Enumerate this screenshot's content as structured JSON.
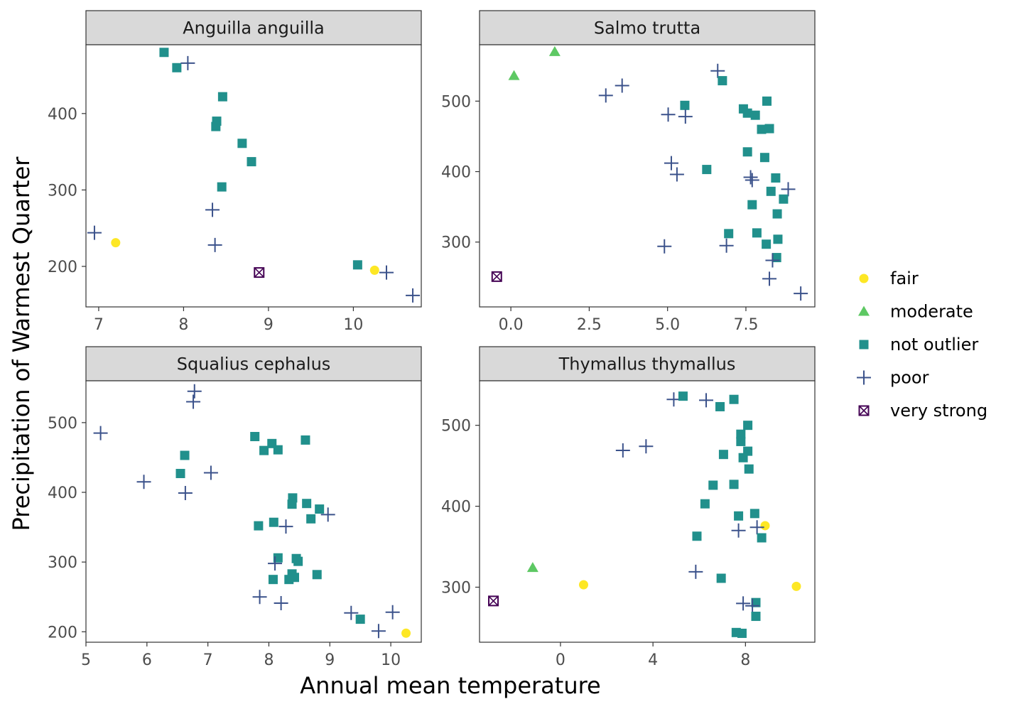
{
  "xlabel": "Annual mean temperature",
  "ylabel": "Precipitation of Warmest Quarter",
  "colors": {
    "fair": "#FDE725",
    "moderate": "#5DC863",
    "not outlier": "#21908C",
    "poor": "#3B528B",
    "very strong": "#440154"
  },
  "legend": {
    "placement": "right",
    "items": [
      {
        "label": "fair",
        "shape": "circle"
      },
      {
        "label": "moderate",
        "shape": "triangle"
      },
      {
        "label": "not outlier",
        "shape": "square"
      },
      {
        "label": "poor",
        "shape": "plus"
      },
      {
        "label": "very strong",
        "shape": "boxed-x"
      }
    ]
  },
  "chart_data": [
    {
      "type": "scatter",
      "title": "Anguilla anguilla",
      "xlim": [
        6.85,
        10.8
      ],
      "ylim": [
        147,
        490
      ],
      "xticks": [
        7,
        8,
        9,
        10
      ],
      "yticks": [
        200,
        300,
        400
      ],
      "show_x_ticks": true,
      "points": [
        {
          "x": 7.77,
          "y": 480,
          "c": "not outlier"
        },
        {
          "x": 7.92,
          "y": 460,
          "c": "not outlier"
        },
        {
          "x": 8.05,
          "y": 466,
          "c": "poor"
        },
        {
          "x": 8.46,
          "y": 422,
          "c": "not outlier"
        },
        {
          "x": 8.39,
          "y": 390,
          "c": "not outlier"
        },
        {
          "x": 8.38,
          "y": 383,
          "c": "not outlier"
        },
        {
          "x": 8.69,
          "y": 361,
          "c": "not outlier"
        },
        {
          "x": 8.8,
          "y": 337,
          "c": "not outlier"
        },
        {
          "x": 8.45,
          "y": 304,
          "c": "not outlier"
        },
        {
          "x": 8.34,
          "y": 274,
          "c": "poor"
        },
        {
          "x": 6.95,
          "y": 244,
          "c": "poor"
        },
        {
          "x": 7.2,
          "y": 231,
          "c": "fair"
        },
        {
          "x": 8.37,
          "y": 228,
          "c": "poor"
        },
        {
          "x": 8.89,
          "y": 192,
          "c": "very strong"
        },
        {
          "x": 10.05,
          "y": 202,
          "c": "not outlier"
        },
        {
          "x": 10.25,
          "y": 195,
          "c": "fair"
        },
        {
          "x": 10.39,
          "y": 192,
          "c": "poor"
        },
        {
          "x": 10.7,
          "y": 162,
          "c": "poor"
        }
      ]
    },
    {
      "type": "scatter",
      "title": "Salmo trutta",
      "xlim": [
        -1.0,
        9.7
      ],
      "ylim": [
        208,
        580
      ],
      "xticks": [
        0.0,
        2.5,
        5.0,
        7.5
      ],
      "xtick_labels": [
        "0.0",
        "2.5",
        "5.0",
        "7.5"
      ],
      "yticks": [
        300,
        400,
        500
      ],
      "show_x_ticks": true,
      "points": [
        {
          "x": 1.4,
          "y": 570,
          "c": "moderate"
        },
        {
          "x": 0.1,
          "y": 536,
          "c": "moderate"
        },
        {
          "x": 3.03,
          "y": 508,
          "c": "poor"
        },
        {
          "x": 3.55,
          "y": 522,
          "c": "poor"
        },
        {
          "x": 6.6,
          "y": 543,
          "c": "poor"
        },
        {
          "x": 6.75,
          "y": 529,
          "c": "not outlier"
        },
        {
          "x": 5.55,
          "y": 494,
          "c": "not outlier"
        },
        {
          "x": 5.02,
          "y": 481,
          "c": "poor"
        },
        {
          "x": 5.57,
          "y": 478,
          "c": "poor"
        },
        {
          "x": 7.42,
          "y": 489,
          "c": "not outlier"
        },
        {
          "x": 7.55,
          "y": 483,
          "c": "not outlier"
        },
        {
          "x": 7.8,
          "y": 480,
          "c": "not outlier"
        },
        {
          "x": 8.17,
          "y": 500,
          "c": "not outlier"
        },
        {
          "x": 8.0,
          "y": 460,
          "c": "not outlier"
        },
        {
          "x": 8.25,
          "y": 461,
          "c": "not outlier"
        },
        {
          "x": 7.55,
          "y": 428,
          "c": "not outlier"
        },
        {
          "x": 8.1,
          "y": 420,
          "c": "not outlier"
        },
        {
          "x": 5.12,
          "y": 412,
          "c": "poor"
        },
        {
          "x": 5.3,
          "y": 396,
          "c": "poor"
        },
        {
          "x": 6.25,
          "y": 403,
          "c": "not outlier"
        },
        {
          "x": 7.65,
          "y": 392,
          "c": "poor"
        },
        {
          "x": 7.7,
          "y": 388,
          "c": "poor"
        },
        {
          "x": 8.45,
          "y": 391,
          "c": "not outlier"
        },
        {
          "x": 8.3,
          "y": 372,
          "c": "not outlier"
        },
        {
          "x": 8.85,
          "y": 375,
          "c": "poor"
        },
        {
          "x": 7.7,
          "y": 353,
          "c": "not outlier"
        },
        {
          "x": 8.7,
          "y": 361,
          "c": "not outlier"
        },
        {
          "x": 8.5,
          "y": 340,
          "c": "not outlier"
        },
        {
          "x": 6.95,
          "y": 312,
          "c": "not outlier"
        },
        {
          "x": 7.85,
          "y": 313,
          "c": "not outlier"
        },
        {
          "x": 8.52,
          "y": 304,
          "c": "not outlier"
        },
        {
          "x": 4.9,
          "y": 294,
          "c": "poor"
        },
        {
          "x": 6.88,
          "y": 295,
          "c": "poor"
        },
        {
          "x": 8.15,
          "y": 297,
          "c": "not outlier"
        },
        {
          "x": 8.48,
          "y": 278,
          "c": "not outlier"
        },
        {
          "x": 8.35,
          "y": 274,
          "c": "poor"
        },
        {
          "x": 8.25,
          "y": 248,
          "c": "poor"
        },
        {
          "x": 9.25,
          "y": 227,
          "c": "poor"
        },
        {
          "x": -0.45,
          "y": 251,
          "c": "very strong"
        }
      ]
    },
    {
      "type": "scatter",
      "title": "Squalius cephalus",
      "xlim": [
        5.0,
        10.5
      ],
      "ylim": [
        185,
        560
      ],
      "xticks": [
        5,
        6,
        7,
        8,
        9,
        10
      ],
      "yticks": [
        200,
        300,
        400,
        500
      ],
      "show_x_ticks": true,
      "points": [
        {
          "x": 6.78,
          "y": 545,
          "c": "poor"
        },
        {
          "x": 6.76,
          "y": 530,
          "c": "poor"
        },
        {
          "x": 5.24,
          "y": 485,
          "c": "poor"
        },
        {
          "x": 7.77,
          "y": 480,
          "c": "not outlier"
        },
        {
          "x": 8.05,
          "y": 470,
          "c": "not outlier"
        },
        {
          "x": 7.92,
          "y": 460,
          "c": "not outlier"
        },
        {
          "x": 8.15,
          "y": 461,
          "c": "not outlier"
        },
        {
          "x": 8.6,
          "y": 475,
          "c": "not outlier"
        },
        {
          "x": 6.62,
          "y": 453,
          "c": "not outlier"
        },
        {
          "x": 6.55,
          "y": 427,
          "c": "not outlier"
        },
        {
          "x": 7.05,
          "y": 428,
          "c": "poor"
        },
        {
          "x": 5.95,
          "y": 415,
          "c": "poor"
        },
        {
          "x": 6.63,
          "y": 399,
          "c": "poor"
        },
        {
          "x": 8.39,
          "y": 392,
          "c": "not outlier"
        },
        {
          "x": 8.38,
          "y": 383,
          "c": "not outlier"
        },
        {
          "x": 8.62,
          "y": 384,
          "c": "not outlier"
        },
        {
          "x": 8.83,
          "y": 376,
          "c": "not outlier"
        },
        {
          "x": 8.97,
          "y": 368,
          "c": "poor"
        },
        {
          "x": 8.69,
          "y": 362,
          "c": "not outlier"
        },
        {
          "x": 8.08,
          "y": 357,
          "c": "not outlier"
        },
        {
          "x": 7.83,
          "y": 352,
          "c": "not outlier"
        },
        {
          "x": 8.28,
          "y": 351,
          "c": "poor"
        },
        {
          "x": 8.15,
          "y": 306,
          "c": "not outlier"
        },
        {
          "x": 8.45,
          "y": 305,
          "c": "not outlier"
        },
        {
          "x": 8.48,
          "y": 301,
          "c": "not outlier"
        },
        {
          "x": 8.1,
          "y": 298,
          "c": "poor"
        },
        {
          "x": 8.38,
          "y": 283,
          "c": "not outlier"
        },
        {
          "x": 8.79,
          "y": 282,
          "c": "not outlier"
        },
        {
          "x": 8.42,
          "y": 278,
          "c": "not outlier"
        },
        {
          "x": 8.33,
          "y": 275,
          "c": "not outlier"
        },
        {
          "x": 8.07,
          "y": 275,
          "c": "not outlier"
        },
        {
          "x": 7.85,
          "y": 250,
          "c": "poor"
        },
        {
          "x": 8.2,
          "y": 241,
          "c": "poor"
        },
        {
          "x": 9.35,
          "y": 227,
          "c": "poor"
        },
        {
          "x": 10.03,
          "y": 228,
          "c": "poor"
        },
        {
          "x": 9.5,
          "y": 218,
          "c": "not outlier"
        },
        {
          "x": 9.8,
          "y": 201,
          "c": "poor"
        },
        {
          "x": 10.25,
          "y": 198,
          "c": "fair"
        }
      ]
    },
    {
      "type": "scatter",
      "title": "Thymallus thymallus",
      "xlim": [
        -3.5,
        11.0
      ],
      "ylim": [
        232,
        555
      ],
      "xticks": [
        0,
        4,
        8
      ],
      "yticks": [
        300,
        400,
        500
      ],
      "show_x_ticks": true,
      "points": [
        {
          "x": 4.9,
          "y": 532,
          "c": "poor"
        },
        {
          "x": 5.3,
          "y": 536,
          "c": "not outlier"
        },
        {
          "x": 6.3,
          "y": 531,
          "c": "poor"
        },
        {
          "x": 7.5,
          "y": 532,
          "c": "not outlier"
        },
        {
          "x": 6.9,
          "y": 523,
          "c": "not outlier"
        },
        {
          "x": 8.1,
          "y": 500,
          "c": "not outlier"
        },
        {
          "x": 7.8,
          "y": 489,
          "c": "not outlier"
        },
        {
          "x": 7.8,
          "y": 480,
          "c": "not outlier"
        },
        {
          "x": 2.7,
          "y": 469,
          "c": "poor"
        },
        {
          "x": 3.7,
          "y": 474,
          "c": "poor"
        },
        {
          "x": 8.1,
          "y": 468,
          "c": "not outlier"
        },
        {
          "x": 7.05,
          "y": 464,
          "c": "not outlier"
        },
        {
          "x": 7.9,
          "y": 460,
          "c": "not outlier"
        },
        {
          "x": 8.15,
          "y": 446,
          "c": "not outlier"
        },
        {
          "x": 6.6,
          "y": 426,
          "c": "not outlier"
        },
        {
          "x": 7.5,
          "y": 427,
          "c": "not outlier"
        },
        {
          "x": 6.25,
          "y": 403,
          "c": "not outlier"
        },
        {
          "x": 8.4,
          "y": 391,
          "c": "not outlier"
        },
        {
          "x": 7.7,
          "y": 388,
          "c": "not outlier"
        },
        {
          "x": 8.85,
          "y": 376,
          "c": "fair"
        },
        {
          "x": 8.5,
          "y": 374,
          "c": "poor"
        },
        {
          "x": 7.7,
          "y": 370,
          "c": "poor"
        },
        {
          "x": 5.9,
          "y": 363,
          "c": "not outlier"
        },
        {
          "x": 8.7,
          "y": 361,
          "c": "not outlier"
        },
        {
          "x": -1.2,
          "y": 324,
          "c": "moderate"
        },
        {
          "x": 5.85,
          "y": 319,
          "c": "poor"
        },
        {
          "x": 6.95,
          "y": 311,
          "c": "not outlier"
        },
        {
          "x": 1.0,
          "y": 303,
          "c": "fair"
        },
        {
          "x": 10.2,
          "y": 301,
          "c": "fair"
        },
        {
          "x": -2.9,
          "y": 283,
          "c": "very strong"
        },
        {
          "x": 7.9,
          "y": 280,
          "c": "poor"
        },
        {
          "x": 8.45,
          "y": 281,
          "c": "not outlier"
        },
        {
          "x": 8.3,
          "y": 277,
          "c": "poor"
        },
        {
          "x": 8.45,
          "y": 264,
          "c": "not outlier"
        },
        {
          "x": 7.6,
          "y": 244,
          "c": "not outlier"
        },
        {
          "x": 7.85,
          "y": 243,
          "c": "not outlier"
        }
      ]
    }
  ]
}
